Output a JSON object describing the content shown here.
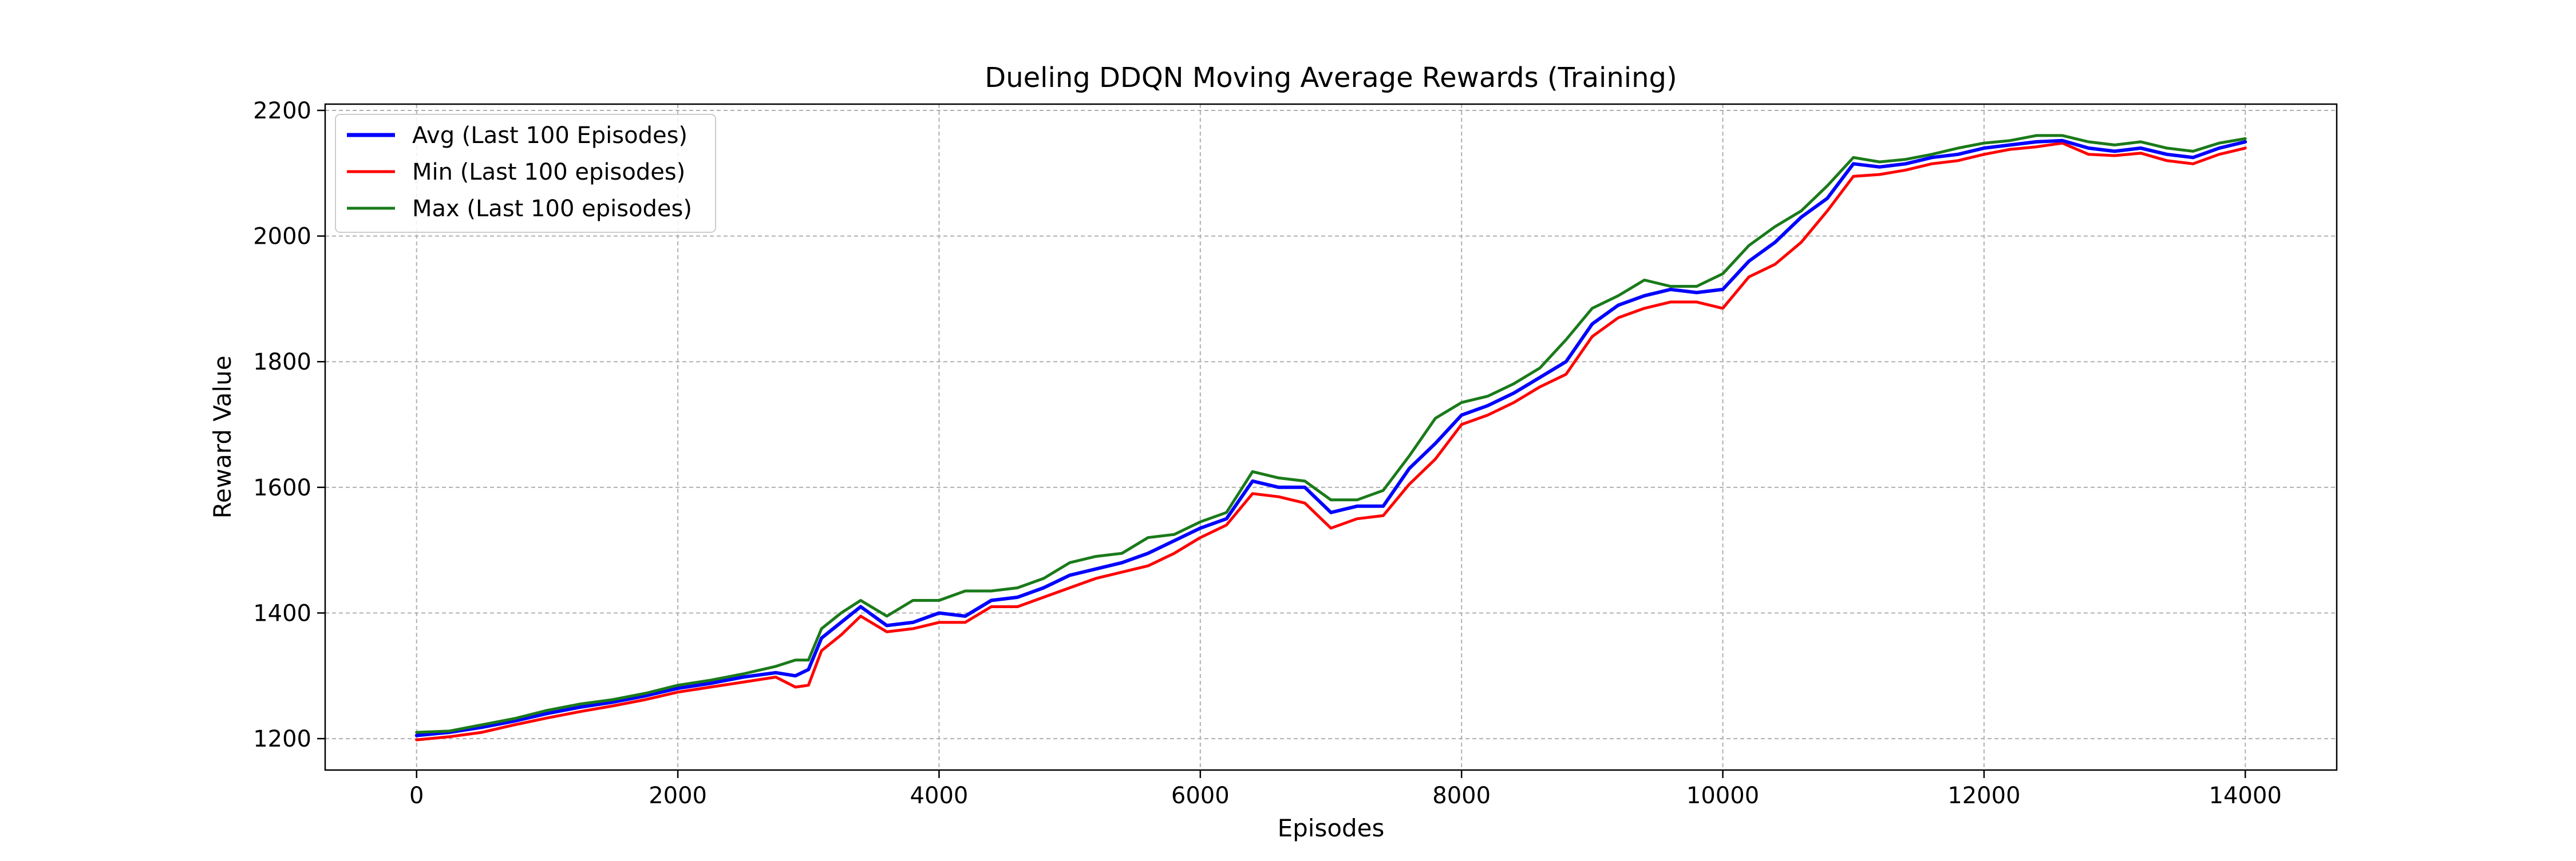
{
  "chart_data": {
    "type": "line",
    "title": "Dueling DDQN Moving Average Rewards (Training)",
    "xlabel": "Episodes",
    "ylabel": "Reward Value",
    "xlim": [
      -700,
      14700
    ],
    "ylim": [
      1150,
      2210
    ],
    "xticks": [
      0,
      2000,
      4000,
      6000,
      8000,
      10000,
      12000,
      14000
    ],
    "yticks": [
      1200,
      1400,
      1600,
      1800,
      2000,
      2200
    ],
    "grid": true,
    "legend_position": "top-left",
    "series": [
      {
        "name": "Avg (Last 100 Episodes)",
        "color": "#0000ff",
        "x": [
          0,
          250,
          500,
          750,
          1000,
          1250,
          1500,
          1750,
          2000,
          2250,
          2500,
          2750,
          2900,
          3000,
          3100,
          3250,
          3400,
          3600,
          3800,
          4000,
          4200,
          4400,
          4600,
          4800,
          5000,
          5200,
          5400,
          5600,
          5800,
          6000,
          6200,
          6400,
          6600,
          6800,
          7000,
          7200,
          7400,
          7600,
          7800,
          8000,
          8200,
          8400,
          8600,
          8800,
          9000,
          9200,
          9400,
          9600,
          9800,
          10000,
          10200,
          10400,
          10600,
          10800,
          11000,
          11200,
          11400,
          11600,
          11800,
          12000,
          12200,
          12400,
          12600,
          12800,
          13000,
          13200,
          13400,
          13600,
          13800,
          14000
        ],
        "values": [
          1205,
          1210,
          1218,
          1228,
          1240,
          1250,
          1258,
          1268,
          1280,
          1288,
          1298,
          1305,
          1300,
          1310,
          1360,
          1385,
          1410,
          1380,
          1385,
          1400,
          1395,
          1420,
          1425,
          1440,
          1460,
          1470,
          1480,
          1495,
          1515,
          1535,
          1550,
          1610,
          1600,
          1600,
          1560,
          1570,
          1570,
          1630,
          1670,
          1715,
          1730,
          1750,
          1775,
          1800,
          1860,
          1890,
          1905,
          1915,
          1910,
          1915,
          1960,
          1990,
          2030,
          2060,
          2115,
          2110,
          2115,
          2125,
          2130,
          2140,
          2145,
          2150,
          2152,
          2140,
          2135,
          2140,
          2130,
          2125,
          2140,
          2150
        ]
      },
      {
        "name": "Min (Last 100 episodes)",
        "color": "#ff0000",
        "x": [
          0,
          250,
          500,
          750,
          1000,
          1250,
          1500,
          1750,
          2000,
          2250,
          2500,
          2750,
          2900,
          3000,
          3100,
          3250,
          3400,
          3600,
          3800,
          4000,
          4200,
          4400,
          4600,
          4800,
          5000,
          5200,
          5400,
          5600,
          5800,
          6000,
          6200,
          6400,
          6600,
          6800,
          7000,
          7200,
          7400,
          7600,
          7800,
          8000,
          8200,
          8400,
          8600,
          8800,
          9000,
          9200,
          9400,
          9600,
          9800,
          10000,
          10200,
          10400,
          10600,
          10800,
          11000,
          11200,
          11400,
          11600,
          11800,
          12000,
          12200,
          12400,
          12600,
          12800,
          13000,
          13200,
          13400,
          13600,
          13800,
          14000
        ],
        "values": [
          1198,
          1203,
          1210,
          1222,
          1233,
          1243,
          1252,
          1262,
          1274,
          1282,
          1290,
          1298,
          1282,
          1285,
          1340,
          1365,
          1395,
          1370,
          1375,
          1385,
          1385,
          1410,
          1410,
          1425,
          1440,
          1455,
          1465,
          1475,
          1495,
          1520,
          1540,
          1590,
          1585,
          1575,
          1535,
          1550,
          1555,
          1605,
          1645,
          1700,
          1715,
          1735,
          1760,
          1780,
          1840,
          1870,
          1885,
          1895,
          1895,
          1885,
          1935,
          1955,
          1990,
          2040,
          2095,
          2098,
          2105,
          2115,
          2120,
          2130,
          2138,
          2142,
          2148,
          2130,
          2128,
          2132,
          2120,
          2115,
          2130,
          2140
        ]
      },
      {
        "name": "Max (Last 100 episodes)",
        "color": "#1a7a1a",
        "x": [
          0,
          250,
          500,
          750,
          1000,
          1250,
          1500,
          1750,
          2000,
          2250,
          2500,
          2750,
          2900,
          3000,
          3100,
          3250,
          3400,
          3600,
          3800,
          4000,
          4200,
          4400,
          4600,
          4800,
          5000,
          5200,
          5400,
          5600,
          5800,
          6000,
          6200,
          6400,
          6600,
          6800,
          7000,
          7200,
          7400,
          7600,
          7800,
          8000,
          8200,
          8400,
          8600,
          8800,
          9000,
          9200,
          9400,
          9600,
          9800,
          10000,
          10200,
          10400,
          10600,
          10800,
          11000,
          11200,
          11400,
          11600,
          11800,
          12000,
          12200,
          12400,
          12600,
          12800,
          13000,
          13200,
          13400,
          13600,
          13800,
          14000
        ],
        "values": [
          1210,
          1212,
          1222,
          1232,
          1245,
          1255,
          1262,
          1272,
          1285,
          1293,
          1303,
          1315,
          1325,
          1325,
          1375,
          1400,
          1420,
          1395,
          1420,
          1420,
          1435,
          1435,
          1440,
          1455,
          1480,
          1490,
          1495,
          1520,
          1525,
          1545,
          1560,
          1625,
          1615,
          1610,
          1580,
          1580,
          1595,
          1650,
          1710,
          1735,
          1745,
          1765,
          1790,
          1835,
          1885,
          1905,
          1930,
          1920,
          1920,
          1940,
          1985,
          2015,
          2040,
          2080,
          2125,
          2118,
          2122,
          2130,
          2140,
          2148,
          2152,
          2160,
          2160,
          2150,
          2145,
          2150,
          2140,
          2135,
          2148,
          2155
        ]
      }
    ]
  }
}
